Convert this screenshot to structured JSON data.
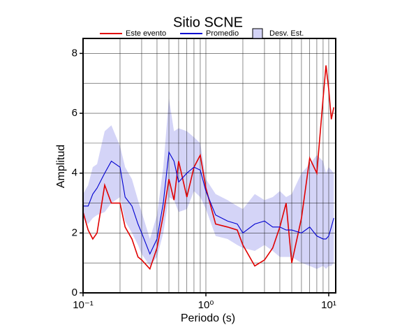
{
  "chart_data": {
    "type": "line",
    "title": "Sitio SCNE",
    "xlabel": "Periodo (s)",
    "ylabel": "Amplitud",
    "xscale": "log",
    "grid": true,
    "xlim": [
      0.1,
      11.4
    ],
    "ylim": [
      0,
      8.5
    ],
    "xticks": [
      {
        "value": 0.1,
        "label": "10⁻¹"
      },
      {
        "value": 1,
        "label": "10⁰"
      },
      {
        "value": 10,
        "label": "10¹"
      }
    ],
    "xminorticks": [
      0.2,
      0.3,
      0.4,
      0.5,
      0.6,
      0.7,
      0.8,
      0.9,
      2,
      3,
      4,
      5,
      6,
      7,
      8,
      9
    ],
    "yticks": [
      0,
      2,
      4,
      6,
      8
    ],
    "yminorticks": [
      1,
      3,
      5,
      7
    ],
    "x": [
      0.1,
      0.11,
      0.12,
      0.13,
      0.15,
      0.17,
      0.2,
      0.22,
      0.25,
      0.28,
      0.3,
      0.35,
      0.4,
      0.45,
      0.5,
      0.55,
      0.6,
      0.7,
      0.8,
      0.9,
      1.0,
      1.2,
      1.5,
      1.8,
      2,
      2.5,
      3,
      3.5,
      4,
      4.5,
      5,
      6,
      7,
      8,
      9,
      9.5,
      10,
      10.5,
      11
    ],
    "band": {
      "name": "Desv. Est.",
      "color": "#d4d4f7",
      "upper": [
        3.3,
        3.6,
        4.2,
        4.3,
        5.4,
        5.6,
        4.9,
        4.2,
        3.8,
        3.1,
        2.7,
        1.8,
        2.6,
        4.2,
        6.5,
        5.4,
        5.5,
        5.4,
        5.2,
        5.0,
        3.8,
        3.3,
        3.1,
        2.9,
        2.8,
        3.3,
        3.1,
        3.2,
        3.4,
        3.2,
        3.3,
        4.0,
        4.3,
        4.6,
        4.4,
        4.0,
        4.2,
        4.1,
        4.0
      ],
      "lower": [
        2.5,
        2.3,
        2.5,
        2.6,
        2.7,
        3.0,
        3.2,
        2.4,
        2.0,
        1.6,
        1.3,
        0.9,
        1.2,
        2.0,
        3.2,
        3.1,
        2.7,
        2.8,
        3.4,
        3.2,
        2.8,
        1.9,
        1.8,
        1.6,
        1.5,
        1.4,
        1.6,
        1.4,
        1.2,
        1.2,
        1.2,
        1.0,
        0.9,
        0.8,
        0.9,
        0.8,
        0.9,
        0.9,
        1.0
      ]
    },
    "series": [
      {
        "name": "Este evento",
        "color": "#e00000",
        "values": [
          2.7,
          2.1,
          1.8,
          2.0,
          3.6,
          3.0,
          3.0,
          2.2,
          1.8,
          1.2,
          1.1,
          0.8,
          1.5,
          2.6,
          3.8,
          3.1,
          4.4,
          3.2,
          4.2,
          4.6,
          3.5,
          2.3,
          2.2,
          2.1,
          1.6,
          0.9,
          1.1,
          1.5,
          2.2,
          3.0,
          1.0,
          2.5,
          4.5,
          4.0,
          6.5,
          7.6,
          6.8,
          5.8,
          6.2
        ]
      },
      {
        "name": "Promedio",
        "color": "#0000d0",
        "values": [
          2.9,
          2.9,
          3.3,
          3.5,
          4.0,
          4.4,
          4.2,
          3.2,
          2.9,
          2.3,
          2.0,
          1.3,
          1.8,
          3.0,
          4.7,
          4.4,
          3.7,
          4.0,
          4.2,
          4.1,
          3.4,
          2.6,
          2.4,
          2.3,
          2.0,
          2.3,
          2.4,
          2.2,
          2.2,
          2.1,
          2.1,
          2.0,
          2.2,
          1.9,
          1.8,
          1.8,
          1.9,
          2.2,
          2.5
        ]
      }
    ]
  }
}
